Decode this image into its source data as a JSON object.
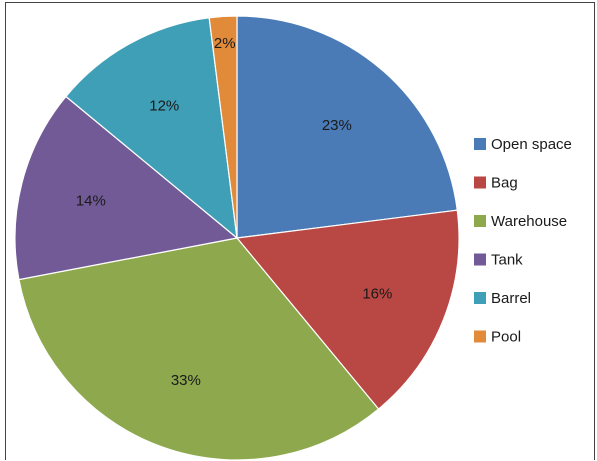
{
  "chart_data": {
    "type": "pie",
    "title": "",
    "start_angle_deg": 0,
    "direction": "clockwise",
    "slices": [
      {
        "label": "Open space",
        "value": 23,
        "display": "23%",
        "color": "#4a7bb7"
      },
      {
        "label": "Bag",
        "value": 16,
        "display": "16%",
        "color": "#b94744"
      },
      {
        "label": "Warehouse",
        "value": 33,
        "display": "33%",
        "color": "#8ea84e"
      },
      {
        "label": "Tank",
        "value": 14,
        "display": "14%",
        "color": "#725a96"
      },
      {
        "label": "Barrel",
        "value": 12,
        "display": "12%",
        "color": "#3f9fb6"
      },
      {
        "label": "Pool",
        "value": 2,
        "display": "2%",
        "color": "#e08a3a"
      }
    ],
    "legend_position": "right"
  }
}
